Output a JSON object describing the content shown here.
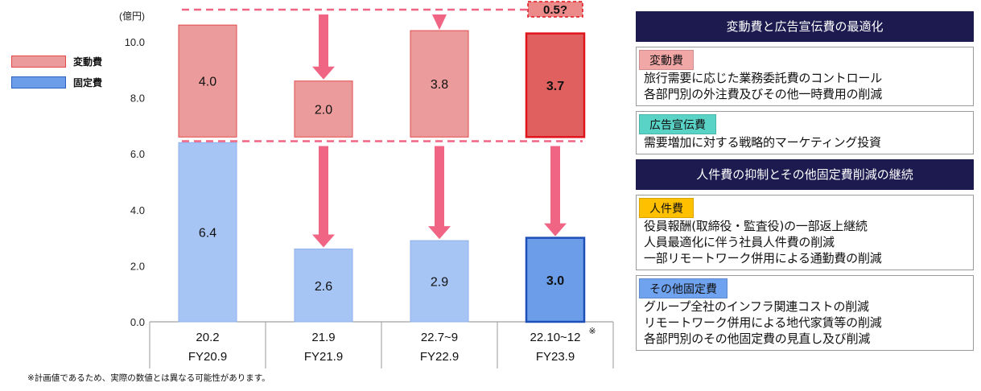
{
  "colors": {
    "variable_fill": "#eb9b9b",
    "variable_stroke": "#e34a4a",
    "variable_forecast_fill": "#e06060",
    "variable_forecast_stroke": "#e0151c",
    "fixed_fill": "#a6c4f4",
    "fixed_stroke": "#8eb0eb",
    "fixed_forecast_fill": "#6b9de9",
    "fixed_forecast_stroke": "#1e4fb8",
    "arrow": "#f06584",
    "dash": "#f06584",
    "header_bg": "#1c1a4f",
    "tag_variable": "#f2a7a7",
    "tag_advert": "#5ad3c7",
    "tag_personnel": "#ffc000",
    "tag_other_fixed": "#6fa2ef"
  },
  "chart_data": {
    "type": "bar",
    "stacked": true,
    "unit_label": "(億円)",
    "ylim": [
      0,
      10.8
    ],
    "yticks": [
      "0.0",
      "2.0",
      "4.0",
      "6.0",
      "8.0",
      "10.0"
    ],
    "categories": [
      {
        "top": "20.2",
        "bottom": "FY20.9",
        "note": ""
      },
      {
        "top": "21.9",
        "bottom": "FY21.9",
        "note": ""
      },
      {
        "top": "22.7~9",
        "bottom": "FY22.9",
        "note": ""
      },
      {
        "top": "22.10~12",
        "bottom": "FY23.9",
        "note": "※"
      }
    ],
    "series": [
      {
        "name": "固定費",
        "values": [
          6.4,
          2.6,
          2.9,
          3.0
        ],
        "labels": [
          "6.4",
          "2.6",
          "2.9",
          "3.0"
        ]
      },
      {
        "name": "変動費",
        "values": [
          4.0,
          2.0,
          3.8,
          3.7
        ],
        "labels": [
          "4.0",
          "2.0",
          "3.8",
          "3.7"
        ]
      }
    ],
    "forecast_index": 3,
    "annotation": "0.5?",
    "legend": [
      "変動費",
      "固定費"
    ],
    "legend_position": "left",
    "grid": false
  },
  "footnote": "※計画値であるため、実際の数値とは異なる可能性があります。",
  "panel": {
    "sections": [
      {
        "title": "変動費と広告宣伝費の最適化",
        "boxes": [
          {
            "tag": "変動費",
            "tag_color": "#f2a7a7",
            "lines": [
              "旅行需要に応じた業務委託費のコントロール",
              "各部門別の外注費及びその他一時費用の削減"
            ]
          },
          {
            "tag": "広告宣伝費",
            "tag_color": "#5ad3c7",
            "lines": [
              "需要増加に対する戦略的マーケティング投資"
            ]
          }
        ]
      },
      {
        "title": "人件費の抑制とその他固定費削減の継続",
        "boxes": [
          {
            "tag": "人件費",
            "tag_color": "#ffc000",
            "lines": [
              "役員報酬(取締役・監査役)の一部返上継続",
              "人員最適化に伴う社員人件費の削減",
              "一部リモートワーク併用による通勤費の削減"
            ]
          },
          {
            "tag": "その他固定費",
            "tag_color": "#6fa2ef",
            "lines": [
              "グループ全社のインフラ関連コストの削減",
              "リモートワーク併用による地代家賃等の削減",
              "各部門別のその他固定費の見直し及び削減"
            ]
          }
        ]
      }
    ]
  }
}
